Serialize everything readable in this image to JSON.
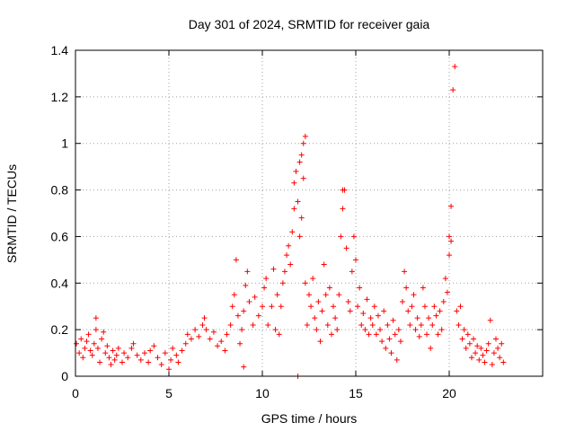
{
  "chart_data": {
    "type": "scatter",
    "title": "Day 301 of 2024, SRMTID for receiver gaia",
    "xlabel": "GPS time / hours",
    "ylabel": "SRMTID / TECUs",
    "xlim": [
      0,
      25
    ],
    "ylim": [
      0,
      1.4
    ],
    "xticks": [
      0,
      5,
      10,
      15,
      20
    ],
    "xtick_labels": [
      "0",
      "5",
      "10",
      "15",
      "20"
    ],
    "yticks": [
      0,
      0.2,
      0.4,
      0.6,
      0.8,
      1,
      1.2,
      1.4
    ],
    "ytick_labels": [
      "0",
      "0.2",
      "0.4",
      "0.6",
      "0.8",
      "1",
      "1.2",
      "1.4"
    ],
    "grid": true,
    "marker": "+",
    "color": "#ff0000",
    "series": [
      {
        "name": "SRMTID",
        "points": [
          [
            0.05,
            0.14
          ],
          [
            0.2,
            0.1
          ],
          [
            0.3,
            0.16
          ],
          [
            0.4,
            0.08
          ],
          [
            0.5,
            0.12
          ],
          [
            0.6,
            0.15
          ],
          [
            0.7,
            0.18
          ],
          [
            0.8,
            0.11
          ],
          [
            0.9,
            0.09
          ],
          [
            1.0,
            0.14
          ],
          [
            1.1,
            0.2
          ],
          [
            1.1,
            0.25
          ],
          [
            1.2,
            0.12
          ],
          [
            1.3,
            0.06
          ],
          [
            1.4,
            0.16
          ],
          [
            1.5,
            0.19
          ],
          [
            1.6,
            0.1
          ],
          [
            1.7,
            0.13
          ],
          [
            1.8,
            0.08
          ],
          [
            1.9,
            0.05
          ],
          [
            2.0,
            0.11
          ],
          [
            2.1,
            0.07
          ],
          [
            2.2,
            0.09
          ],
          [
            2.3,
            0.12
          ],
          [
            2.5,
            0.06
          ],
          [
            2.6,
            0.1
          ],
          [
            2.8,
            0.08
          ],
          [
            3.0,
            0.12
          ],
          [
            3.1,
            0.14
          ],
          [
            3.3,
            0.09
          ],
          [
            3.5,
            0.07
          ],
          [
            3.7,
            0.1
          ],
          [
            3.9,
            0.06
          ],
          [
            4.0,
            0.11
          ],
          [
            4.2,
            0.13
          ],
          [
            4.4,
            0.08
          ],
          [
            4.6,
            0.05
          ],
          [
            4.8,
            0.1
          ],
          [
            5.0,
            0.03
          ],
          [
            5.1,
            0.07
          ],
          [
            5.2,
            0.12
          ],
          [
            5.4,
            0.09
          ],
          [
            5.5,
            0.06
          ],
          [
            5.7,
            0.11
          ],
          [
            5.9,
            0.14
          ],
          [
            6.0,
            0.18
          ],
          [
            6.2,
            0.16
          ],
          [
            6.4,
            0.2
          ],
          [
            6.6,
            0.17
          ],
          [
            6.8,
            0.22
          ],
          [
            6.9,
            0.25
          ],
          [
            7.0,
            0.2
          ],
          [
            7.2,
            0.16
          ],
          [
            7.4,
            0.19
          ],
          [
            7.6,
            0.13
          ],
          [
            7.8,
            0.15
          ],
          [
            8.0,
            0.11
          ],
          [
            8.1,
            0.18
          ],
          [
            8.3,
            0.22
          ],
          [
            8.4,
            0.3
          ],
          [
            8.5,
            0.35
          ],
          [
            8.6,
            0.5
          ],
          [
            8.7,
            0.26
          ],
          [
            8.8,
            0.14
          ],
          [
            8.9,
            0.2
          ],
          [
            9.0,
            0.28
          ],
          [
            9.0,
            0.04
          ],
          [
            9.1,
            0.39
          ],
          [
            9.2,
            0.45
          ],
          [
            9.3,
            0.32
          ],
          [
            9.5,
            0.22
          ],
          [
            9.6,
            0.34
          ],
          [
            9.8,
            0.26
          ],
          [
            10.0,
            0.3
          ],
          [
            10.1,
            0.38
          ],
          [
            10.2,
            0.42
          ],
          [
            10.3,
            0.22
          ],
          [
            10.5,
            0.3
          ],
          [
            10.6,
            0.46
          ],
          [
            10.7,
            0.2
          ],
          [
            10.8,
            0.35
          ],
          [
            10.9,
            0.18
          ],
          [
            11.0,
            0.3
          ],
          [
            11.1,
            0.4
          ],
          [
            11.2,
            0.45
          ],
          [
            11.3,
            0.52
          ],
          [
            11.4,
            0.56
          ],
          [
            11.5,
            0.48
          ],
          [
            11.6,
            0.62
          ],
          [
            11.7,
            0.72
          ],
          [
            11.7,
            0.83
          ],
          [
            11.8,
            0.88
          ],
          [
            11.9,
            0.75
          ],
          [
            11.9,
            0.0
          ],
          [
            12.0,
            0.6
          ],
          [
            12.0,
            0.92
          ],
          [
            12.1,
            0.68
          ],
          [
            12.1,
            0.95
          ],
          [
            12.2,
            0.85
          ],
          [
            12.2,
            1.0
          ],
          [
            12.3,
            1.03
          ],
          [
            12.3,
            0.4
          ],
          [
            12.4,
            0.22
          ],
          [
            12.5,
            0.35
          ],
          [
            12.6,
            0.3
          ],
          [
            12.7,
            0.42
          ],
          [
            12.8,
            0.25
          ],
          [
            12.9,
            0.2
          ],
          [
            13.0,
            0.32
          ],
          [
            13.1,
            0.15
          ],
          [
            13.2,
            0.28
          ],
          [
            13.3,
            0.48
          ],
          [
            13.4,
            0.35
          ],
          [
            13.5,
            0.22
          ],
          [
            13.6,
            0.38
          ],
          [
            13.7,
            0.18
          ],
          [
            13.8,
            0.3
          ],
          [
            13.9,
            0.25
          ],
          [
            14.0,
            0.2
          ],
          [
            14.1,
            0.35
          ],
          [
            14.2,
            0.6
          ],
          [
            14.3,
            0.72
          ],
          [
            14.3,
            0.8
          ],
          [
            14.4,
            0.8
          ],
          [
            14.5,
            0.55
          ],
          [
            14.6,
            0.32
          ],
          [
            14.7,
            0.28
          ],
          [
            14.8,
            0.45
          ],
          [
            14.9,
            0.6
          ],
          [
            15.0,
            0.5
          ],
          [
            15.1,
            0.3
          ],
          [
            15.2,
            0.38
          ],
          [
            15.3,
            0.22
          ],
          [
            15.4,
            0.27
          ],
          [
            15.5,
            0.2
          ],
          [
            15.6,
            0.33
          ],
          [
            15.7,
            0.18
          ],
          [
            15.8,
            0.25
          ],
          [
            15.9,
            0.22
          ],
          [
            16.0,
            0.3
          ],
          [
            16.1,
            0.18
          ],
          [
            16.2,
            0.26
          ],
          [
            16.3,
            0.2
          ],
          [
            16.4,
            0.15
          ],
          [
            16.5,
            0.28
          ],
          [
            16.6,
            0.12
          ],
          [
            16.7,
            0.22
          ],
          [
            16.8,
            0.16
          ],
          [
            16.9,
            0.1
          ],
          [
            17.0,
            0.24
          ],
          [
            17.1,
            0.18
          ],
          [
            17.2,
            0.07
          ],
          [
            17.3,
            0.2
          ],
          [
            17.4,
            0.15
          ],
          [
            17.5,
            0.32
          ],
          [
            17.6,
            0.45
          ],
          [
            17.7,
            0.38
          ],
          [
            17.8,
            0.28
          ],
          [
            17.9,
            0.22
          ],
          [
            18.0,
            0.3
          ],
          [
            18.1,
            0.35
          ],
          [
            18.2,
            0.2
          ],
          [
            18.3,
            0.25
          ],
          [
            18.4,
            0.17
          ],
          [
            18.5,
            0.22
          ],
          [
            18.6,
            0.38
          ],
          [
            18.7,
            0.3
          ],
          [
            18.8,
            0.18
          ],
          [
            18.9,
            0.25
          ],
          [
            19.0,
            0.12
          ],
          [
            19.1,
            0.22
          ],
          [
            19.2,
            0.3
          ],
          [
            19.3,
            0.26
          ],
          [
            19.4,
            0.18
          ],
          [
            19.5,
            0.28
          ],
          [
            19.6,
            0.2
          ],
          [
            19.7,
            0.32
          ],
          [
            19.8,
            0.42
          ],
          [
            19.9,
            0.36
          ],
          [
            20.0,
            0.52
          ],
          [
            20.0,
            0.6
          ],
          [
            20.1,
            0.58
          ],
          [
            20.1,
            0.73
          ],
          [
            20.2,
            1.23
          ],
          [
            20.3,
            1.33
          ],
          [
            20.4,
            0.28
          ],
          [
            20.5,
            0.22
          ],
          [
            20.6,
            0.3
          ],
          [
            20.7,
            0.16
          ],
          [
            20.8,
            0.2
          ],
          [
            20.9,
            0.12
          ],
          [
            21.0,
            0.18
          ],
          [
            21.1,
            0.14
          ],
          [
            21.2,
            0.08
          ],
          [
            21.3,
            0.16
          ],
          [
            21.4,
            0.1
          ],
          [
            21.5,
            0.13
          ],
          [
            21.6,
            0.07
          ],
          [
            21.7,
            0.12
          ],
          [
            21.8,
            0.09
          ],
          [
            21.9,
            0.06
          ],
          [
            22.0,
            0.11
          ],
          [
            22.1,
            0.14
          ],
          [
            22.2,
            0.24
          ],
          [
            22.3,
            0.05
          ],
          [
            22.4,
            0.1
          ],
          [
            22.5,
            0.16
          ],
          [
            22.6,
            0.12
          ],
          [
            22.7,
            0.08
          ],
          [
            22.8,
            0.14
          ],
          [
            22.9,
            0.06
          ]
        ]
      }
    ]
  }
}
